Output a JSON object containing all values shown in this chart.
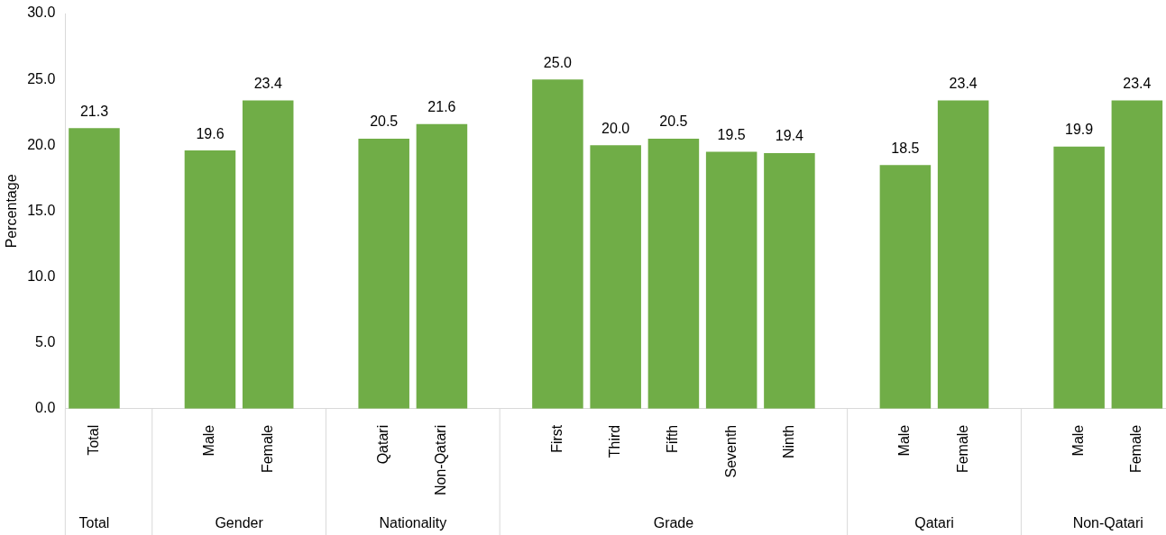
{
  "chart_data": {
    "type": "bar",
    "ylabel": "Percentage",
    "categories": [
      "Total",
      null,
      "Male",
      "Female",
      null,
      "Qatari",
      "Non-Qatari",
      null,
      "First",
      "Third",
      "Fifth",
      "Seventh",
      "Ninth",
      null,
      "Male",
      "Female",
      null,
      "Male",
      "Female"
    ],
    "values": [
      21.3,
      null,
      19.6,
      23.4,
      null,
      20.5,
      21.6,
      null,
      25.0,
      20.0,
      20.5,
      19.5,
      19.4,
      null,
      18.5,
      23.4,
      null,
      19.9,
      23.4
    ],
    "color": "#70ad47",
    "ylim": [
      0,
      30
    ],
    "yticks": [
      {
        "value": 0,
        "label": "0.0"
      },
      {
        "value": 5,
        "label": "5.0"
      },
      {
        "value": 10,
        "label": "10.0"
      },
      {
        "value": 15,
        "label": "15.0"
      },
      {
        "value": 20,
        "label": "20.0"
      },
      {
        "value": 25,
        "label": "25.0"
      },
      {
        "value": 30,
        "label": "30.0"
      }
    ],
    "value_labels": [
      "21.3",
      null,
      "19.6",
      "23.4",
      null,
      "20.5",
      "21.6",
      null,
      "25.0",
      "20.0",
      "20.5",
      "19.5",
      "19.4",
      null,
      "18.5",
      "23.4",
      null,
      "19.9",
      "23.4"
    ],
    "annotations": [
      "Total",
      "Gender",
      "Nationality",
      "Grade",
      "Qatari",
      "Non-Qatari"
    ]
  }
}
